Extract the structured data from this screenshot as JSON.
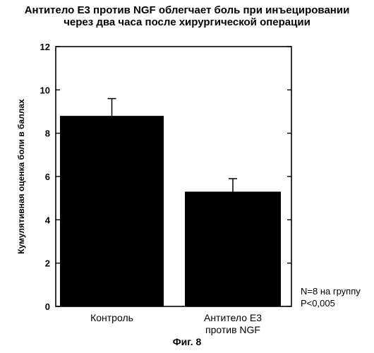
{
  "title_line1": "Антитело Е3 против NGF облегчает боль при инъецировании",
  "title_line2": "через два часа после хирургической операции",
  "figure_caption": "Фиг. 8",
  "note_n": "N=8 на группу",
  "note_p": "P<0,005",
  "chart_data": {
    "type": "bar",
    "title": "Антитело Е3 против NGF облегчает боль при инъецировании через два часа после хирургической операции",
    "ylabel": "Кумулятивная оценка боли в баллах",
    "xlabel": "",
    "ylim": [
      0,
      12
    ],
    "yticks": [
      0,
      2,
      4,
      6,
      8,
      10,
      12
    ],
    "categories": [
      {
        "lines": [
          "Контроль"
        ]
      },
      {
        "lines": [
          "Антитело Е3",
          "против NGF"
        ]
      }
    ],
    "values": [
      8.8,
      5.3
    ],
    "errors": [
      0.8,
      0.6
    ],
    "bar_color": "#000000",
    "grid": false
  }
}
